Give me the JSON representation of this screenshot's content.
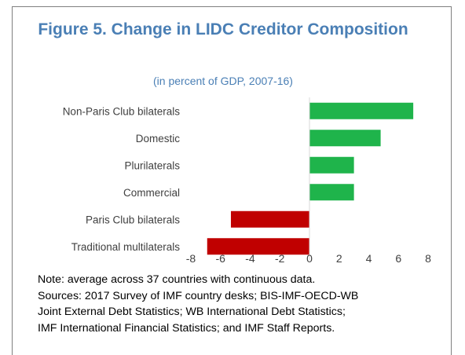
{
  "figure": {
    "title": "Figure 5. Change in LIDC Creditor Composition",
    "subtitle": "(in percent of GDP, 2007-16)"
  },
  "chart_data": {
    "type": "bar",
    "orientation": "horizontal",
    "categories": [
      "Non-Paris Club bilaterals",
      "Domestic",
      "Plurilaterals",
      "Commercial",
      "Paris Club bilaterals",
      "Traditional multilaterals"
    ],
    "values": [
      7.0,
      4.8,
      3.0,
      3.0,
      -5.3,
      -6.9
    ],
    "xlim": [
      -8,
      8
    ],
    "xticks": [
      "-8",
      "-6",
      "-4",
      "-2",
      "0",
      "2",
      "4",
      "6",
      "8"
    ],
    "grid": false,
    "positive_color": "#1fb44b",
    "negative_color": "#c00000"
  },
  "notes": [
    "Note: average across 37 countries with continuous data.",
    "Sources: 2017 Survey of IMF country desks; BIS-IMF-OECD-WB",
    "Joint External Debt Statistics; WB International Debt Statistics;",
    "IMF International Financial Statistics; and IMF Staff Reports."
  ]
}
